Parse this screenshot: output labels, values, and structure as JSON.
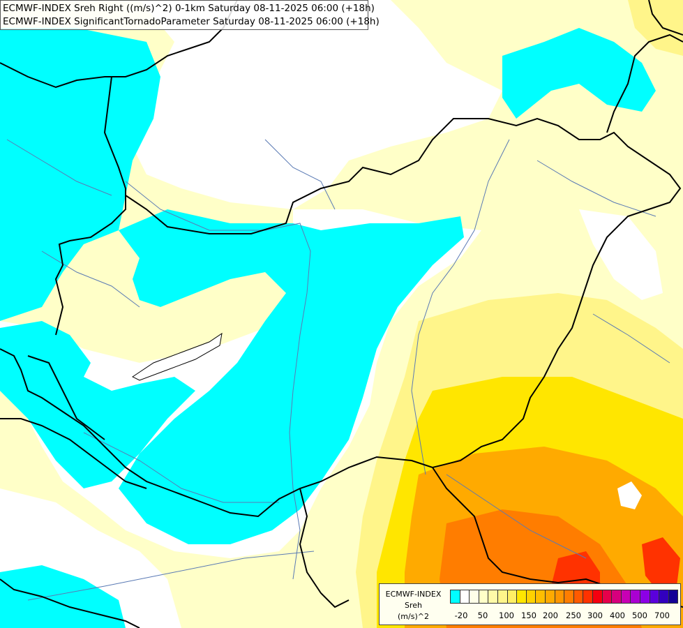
{
  "titles": {
    "line1": "ECMWF-INDEX Sreh Right ((m/s)^2) 0-1km Saturday 08-11-2025 06:00 (+18h)",
    "line2": "ECMWF-INDEX SignificantTornadoParameter Saturday 08-11-2025 06:00 (+18h)"
  },
  "legend": {
    "line1": "ECMWF-INDEX",
    "line2": "Sreh",
    "line3": "(m/s)^2",
    "colors": [
      "#00ffff",
      "#ffffff",
      "#ffffe8",
      "#ffffc8",
      "#fffaa8",
      "#fff58a",
      "#ffef64",
      "#ffe600",
      "#ffd200",
      "#ffbe00",
      "#ffaa00",
      "#ff9600",
      "#ff7d00",
      "#ff5a00",
      "#ff3200",
      "#f5000f",
      "#e6004b",
      "#d7007d",
      "#c800b4",
      "#aa00d2",
      "#8c00e6",
      "#5a00dc",
      "#3200be",
      "#140096"
    ],
    "ticks": [
      "-20",
      "50",
      "100",
      "150",
      "200",
      "250",
      "300",
      "400",
      "500",
      "700"
    ]
  },
  "map": {
    "region": "Hungary and surroundings",
    "fill_colors": {
      "low_cyan": "#00ffff",
      "neutral": "#ffffff",
      "light": "#ffffc8",
      "medium": "#fff58a",
      "yellow": "#ffe600",
      "orange": "#ffaa00",
      "dark_orange": "#ff7d00",
      "red": "#ff3200"
    },
    "border_color": "#000000",
    "river_color": "#5a7ab4"
  }
}
